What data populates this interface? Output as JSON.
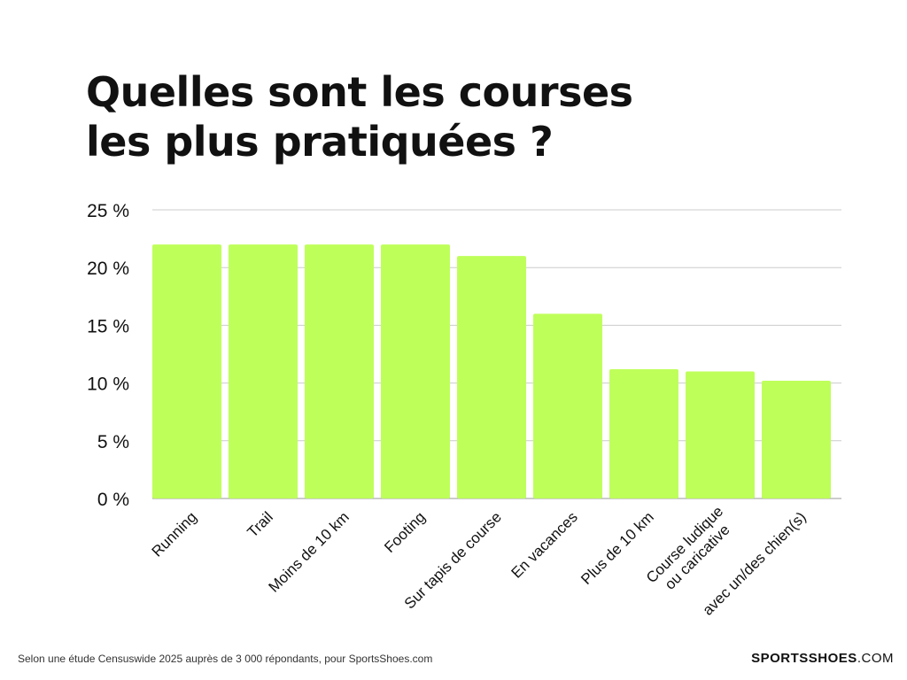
{
  "chart_data": {
    "type": "bar",
    "title": [
      "Quelles sont les courses",
      "les plus pratiquées ?"
    ],
    "categories": [
      [
        "Running"
      ],
      [
        "Trail"
      ],
      [
        "Moins de 10 km"
      ],
      [
        "Footing"
      ],
      [
        "Sur tapis de course"
      ],
      [
        "En vacances"
      ],
      [
        "Plus de 10 km"
      ],
      [
        "Course ludique",
        "ou caricative"
      ],
      [
        "avec un/des chien(s)"
      ]
    ],
    "values": [
      22,
      22,
      22,
      22,
      21,
      16,
      11.2,
      11,
      10.2
    ],
    "ylim": [
      0,
      25
    ],
    "yticks": [
      0,
      5,
      10,
      15,
      20,
      25
    ],
    "ytick_labels": [
      "0 %",
      "5 %",
      "10 %",
      "15 %",
      "20 %",
      "25 %"
    ],
    "grid": true,
    "bar_color": "#bfff5a"
  },
  "footer": {
    "source": "Selon une étude Censuswide 2025 auprès de 3 000 répondants, pour SportsShoes.com",
    "brand_bold": "SPORTSSHOES",
    "brand_light": ".COM"
  }
}
